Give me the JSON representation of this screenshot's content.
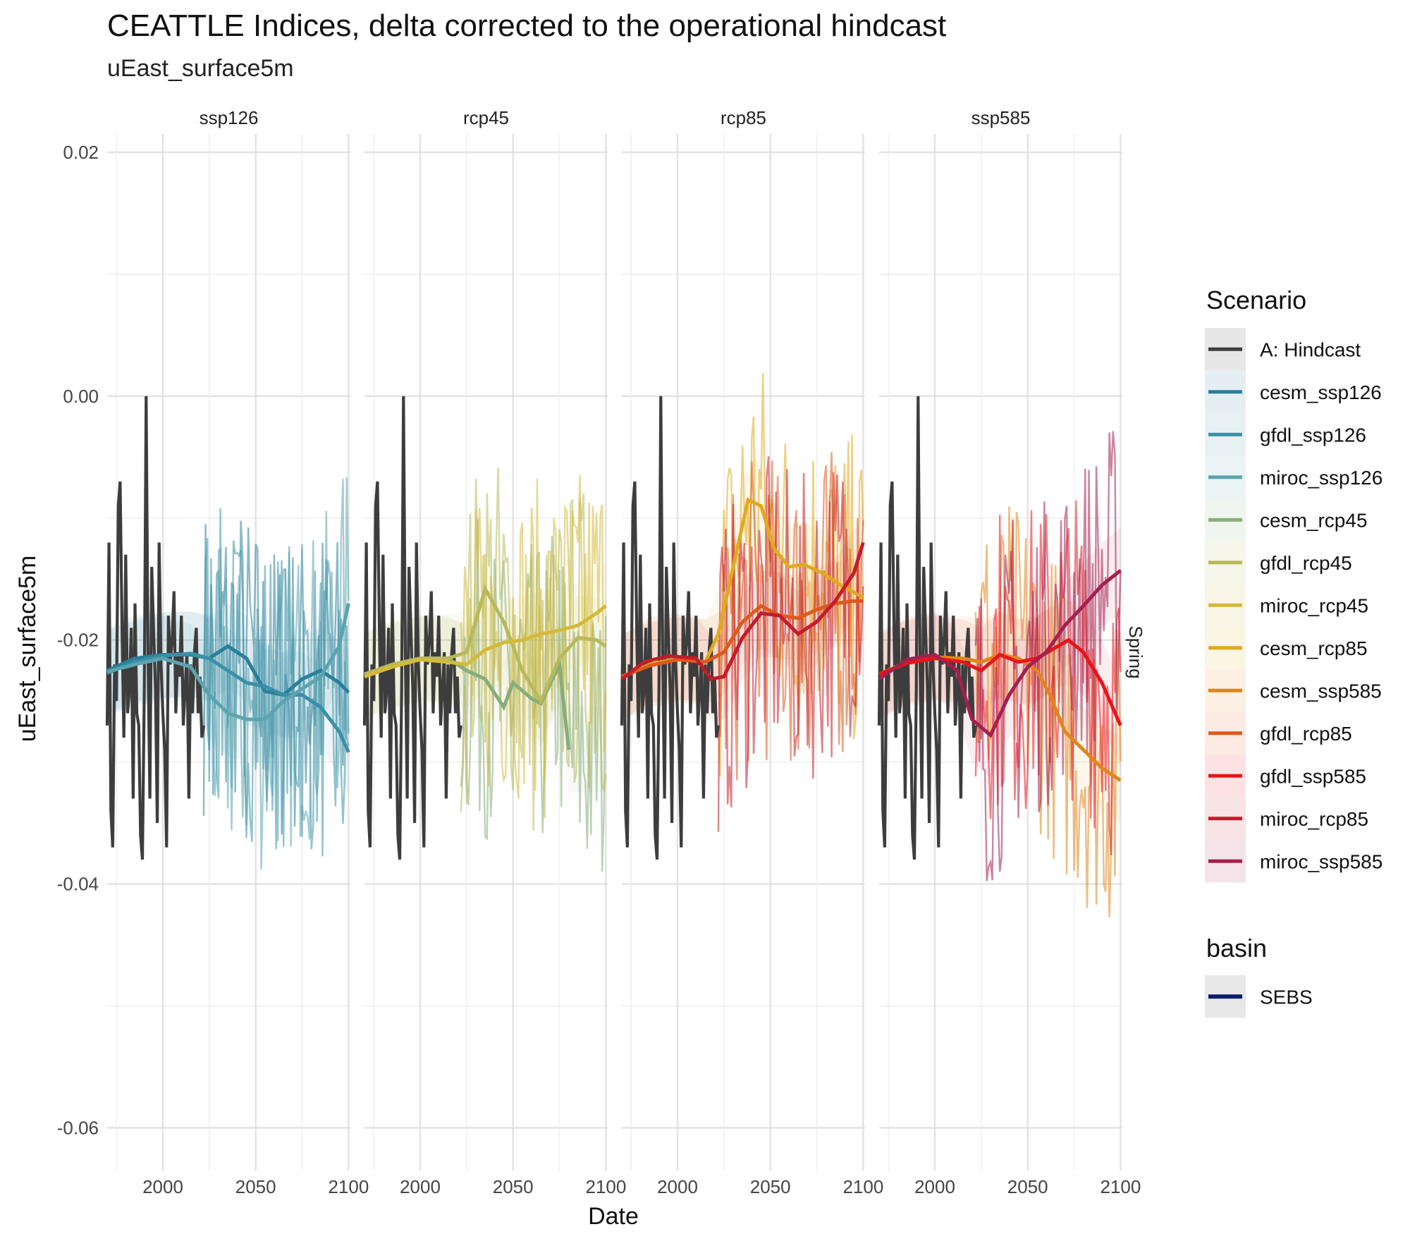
{
  "chart_data": {
    "type": "line",
    "title": "CEATTLE Indices, delta corrected to the operational hindcast",
    "subtitle": "uEast_surface5m",
    "xlabel": "Date",
    "ylabel": "uEast_surface5m",
    "row_strip": "Spring",
    "xlim": [
      1970,
      2101
    ],
    "ylim": [
      -0.0635,
      0.0215
    ],
    "x_ticks": [
      2000,
      2050,
      2100
    ],
    "x_tick_labels": [
      "2000",
      "2050",
      "2100"
    ],
    "y_ticks": [
      0.02,
      0.0,
      -0.02,
      -0.04,
      -0.06
    ],
    "y_tick_labels": [
      "0.02",
      "0.00",
      "-0.02",
      "-0.04",
      "-0.06"
    ],
    "grid": true,
    "legend_position": "right",
    "legend": {
      "scenario_title": "Scenario",
      "scenarios": [
        {
          "name": "A: Hindcast",
          "color": "#3d3d3d"
        },
        {
          "name": "cesm_ssp126",
          "color": "#2a7f9a"
        },
        {
          "name": "gfdl_ssp126",
          "color": "#3b8fa8"
        },
        {
          "name": "miroc_ssp126",
          "color": "#5ba4ae"
        },
        {
          "name": "cesm_rcp45",
          "color": "#87ad7a"
        },
        {
          "name": "gfdl_rcp45",
          "color": "#b8b95a"
        },
        {
          "name": "miroc_rcp45",
          "color": "#d4b93a"
        },
        {
          "name": "cesm_rcp85",
          "color": "#e1a91e"
        },
        {
          "name": "cesm_ssp585",
          "color": "#e0861a"
        },
        {
          "name": "gfdl_rcp85",
          "color": "#dd5a1c"
        },
        {
          "name": "gfdl_ssp585",
          "color": "#e8141b"
        },
        {
          "name": "miroc_rcp85",
          "color": "#c51b2a"
        },
        {
          "name": "miroc_ssp585",
          "color": "#a3204e"
        }
      ],
      "basin_title": "basin",
      "basins": [
        {
          "name": "SEBS",
          "color": "#0b1e6e"
        }
      ]
    },
    "hindcast": {
      "x": [
        1970,
        1971,
        1972,
        1973,
        1974,
        1975,
        1976,
        1977,
        1978,
        1979,
        1980,
        1981,
        1982,
        1983,
        1984,
        1985,
        1986,
        1987,
        1988,
        1989,
        1990,
        1991,
        1992,
        1993,
        1994,
        1995,
        1996,
        1997,
        1998,
        1999,
        2000,
        2001,
        2002,
        2003,
        2004,
        2005,
        2006,
        2007,
        2008,
        2009,
        2010,
        2011,
        2012,
        2013,
        2014,
        2015,
        2016,
        2017,
        2018,
        2019,
        2020,
        2021,
        2022
      ],
      "y": [
        -0.027,
        -0.012,
        -0.034,
        -0.037,
        -0.022,
        -0.025,
        -0.009,
        -0.007,
        -0.019,
        -0.028,
        -0.013,
        -0.026,
        -0.024,
        -0.019,
        -0.033,
        -0.017,
        -0.026,
        -0.027,
        -0.036,
        -0.038,
        -0.024,
        0.0,
        -0.021,
        -0.033,
        -0.014,
        -0.019,
        -0.024,
        -0.035,
        -0.012,
        -0.022,
        -0.026,
        -0.029,
        -0.037,
        -0.018,
        -0.022,
        -0.02,
        -0.016,
        -0.026,
        -0.021,
        -0.023,
        -0.018,
        -0.027,
        -0.024,
        -0.021,
        -0.033,
        -0.022,
        -0.026,
        -0.021,
        -0.019,
        -0.026,
        -0.023,
        -0.028,
        -0.027
      ]
    },
    "panels": [
      {
        "name": "ssp126",
        "series": [
          {
            "name": "cesm_ssp126",
            "smooth": [
              [
                1970,
                -0.0225
              ],
              [
                1985,
                -0.0215
              ],
              [
                2000,
                -0.0212
              ],
              [
                2015,
                -0.0212
              ],
              [
                2025,
                -0.0215
              ],
              [
                2035,
                -0.0205
              ],
              [
                2045,
                -0.0215
              ],
              [
                2055,
                -0.0242
              ],
              [
                2065,
                -0.0245
              ],
              [
                2075,
                -0.0232
              ],
              [
                2085,
                -0.0225
              ],
              [
                2095,
                -0.0235
              ],
              [
                2100,
                -0.0243
              ]
            ]
          },
          {
            "name": "gfdl_ssp126",
            "smooth": [
              [
                1970,
                -0.0227
              ],
              [
                1985,
                -0.0218
              ],
              [
                2000,
                -0.0213
              ],
              [
                2015,
                -0.0211
              ],
              [
                2025,
                -0.0215
              ],
              [
                2035,
                -0.0225
              ],
              [
                2045,
                -0.0235
              ],
              [
                2055,
                -0.0238
              ],
              [
                2065,
                -0.0245
              ],
              [
                2075,
                -0.0245
              ],
              [
                2085,
                -0.0255
              ],
              [
                2095,
                -0.0275
              ],
              [
                2100,
                -0.0292
              ]
            ]
          },
          {
            "name": "miroc_ssp126",
            "smooth": [
              [
                1970,
                -0.0226
              ],
              [
                1985,
                -0.022
              ],
              [
                2000,
                -0.0215
              ],
              [
                2015,
                -0.0222
              ],
              [
                2025,
                -0.0245
              ],
              [
                2035,
                -0.026
              ],
              [
                2045,
                -0.0265
              ],
              [
                2055,
                -0.0265
              ],
              [
                2065,
                -0.025
              ],
              [
                2075,
                -0.024
              ],
              [
                2085,
                -0.023
              ],
              [
                2095,
                -0.0205
              ],
              [
                2100,
                -0.017
              ]
            ]
          }
        ]
      },
      {
        "name": "rcp45",
        "series": [
          {
            "name": "cesm_rcp45",
            "smooth": [
              [
                1970,
                -0.0228
              ],
              [
                1985,
                -0.022
              ],
              [
                2000,
                -0.0215
              ],
              [
                2015,
                -0.0215
              ],
              [
                2025,
                -0.0225
              ],
              [
                2035,
                -0.0232
              ],
              [
                2045,
                -0.0255
              ],
              [
                2050,
                -0.0235
              ],
              [
                2060,
                -0.0248
              ],
              [
                2065,
                -0.0252
              ],
              [
                2075,
                -0.022
              ],
              [
                2080,
                -0.029
              ]
            ]
          },
          {
            "name": "gfdl_rcp45",
            "smooth": [
              [
                1970,
                -0.0228
              ],
              [
                1985,
                -0.022
              ],
              [
                2000,
                -0.0215
              ],
              [
                2015,
                -0.0215
              ],
              [
                2025,
                -0.021
              ],
              [
                2035,
                -0.0158
              ],
              [
                2045,
                -0.0185
              ],
              [
                2055,
                -0.0225
              ],
              [
                2065,
                -0.025
              ],
              [
                2075,
                -0.0215
              ],
              [
                2085,
                -0.0198
              ],
              [
                2095,
                -0.02
              ],
              [
                2100,
                -0.0205
              ]
            ]
          },
          {
            "name": "miroc_rcp45",
            "smooth": [
              [
                1970,
                -0.023
              ],
              [
                1985,
                -0.0222
              ],
              [
                2000,
                -0.0216
              ],
              [
                2015,
                -0.0218
              ],
              [
                2025,
                -0.022
              ],
              [
                2035,
                -0.0208
              ],
              [
                2045,
                -0.0202
              ],
              [
                2055,
                -0.02
              ],
              [
                2065,
                -0.0195
              ],
              [
                2075,
                -0.0192
              ],
              [
                2085,
                -0.0188
              ],
              [
                2095,
                -0.0178
              ],
              [
                2100,
                -0.0172
              ]
            ]
          }
        ]
      },
      {
        "name": "rcp85",
        "series": [
          {
            "name": "cesm_rcp85",
            "smooth": [
              [
                1970,
                -0.023
              ],
              [
                1985,
                -0.022
              ],
              [
                2000,
                -0.0215
              ],
              [
                2015,
                -0.0218
              ],
              [
                2022,
                -0.0195
              ],
              [
                2030,
                -0.014
              ],
              [
                2038,
                -0.0085
              ],
              [
                2045,
                -0.009
              ],
              [
                2052,
                -0.0125
              ],
              [
                2060,
                -0.014
              ],
              [
                2068,
                -0.0138
              ],
              [
                2078,
                -0.0145
              ],
              [
                2088,
                -0.0155
              ],
              [
                2100,
                -0.0165
              ]
            ]
          },
          {
            "name": "gfdl_rcp85",
            "smooth": [
              [
                1970,
                -0.023
              ],
              [
                1985,
                -0.0221
              ],
              [
                2000,
                -0.0216
              ],
              [
                2015,
                -0.0218
              ],
              [
                2025,
                -0.021
              ],
              [
                2035,
                -0.0185
              ],
              [
                2045,
                -0.0172
              ],
              [
                2055,
                -0.018
              ],
              [
                2065,
                -0.0182
              ],
              [
                2075,
                -0.0175
              ],
              [
                2085,
                -0.017
              ],
              [
                2095,
                -0.0168
              ],
              [
                2100,
                -0.0168
              ]
            ]
          },
          {
            "name": "miroc_rcp85",
            "smooth": [
              [
                1970,
                -0.0232
              ],
              [
                1982,
                -0.0218
              ],
              [
                1995,
                -0.0213
              ],
              [
                2010,
                -0.0215
              ],
              [
                2018,
                -0.0232
              ],
              [
                2025,
                -0.023
              ],
              [
                2035,
                -0.0198
              ],
              [
                2045,
                -0.0178
              ],
              [
                2055,
                -0.018
              ],
              [
                2065,
                -0.0195
              ],
              [
                2075,
                -0.0185
              ],
              [
                2085,
                -0.0168
              ],
              [
                2095,
                -0.0145
              ],
              [
                2100,
                -0.012
              ]
            ]
          }
        ]
      },
      {
        "name": "ssp585",
        "series": [
          {
            "name": "cesm_ssp585",
            "smooth": [
              [
                1970,
                -0.0228
              ],
              [
                1985,
                -0.0218
              ],
              [
                2000,
                -0.0214
              ],
              [
                2015,
                -0.0215
              ],
              [
                2025,
                -0.0218
              ],
              [
                2035,
                -0.0212
              ],
              [
                2045,
                -0.0215
              ],
              [
                2055,
                -0.0225
              ],
              [
                2062,
                -0.0245
              ],
              [
                2070,
                -0.0275
              ],
              [
                2080,
                -0.029
              ],
              [
                2090,
                -0.0305
              ],
              [
                2100,
                -0.0315
              ]
            ]
          },
          {
            "name": "gfdl_ssp585",
            "smooth": [
              [
                1970,
                -0.0228
              ],
              [
                1985,
                -0.0219
              ],
              [
                2000,
                -0.0215
              ],
              [
                2015,
                -0.0218
              ],
              [
                2025,
                -0.0225
              ],
              [
                2035,
                -0.0212
              ],
              [
                2045,
                -0.0218
              ],
              [
                2055,
                -0.0215
              ],
              [
                2063,
                -0.0208
              ],
              [
                2072,
                -0.02
              ],
              [
                2080,
                -0.021
              ],
              [
                2090,
                -0.0235
              ],
              [
                2100,
                -0.027
              ]
            ]
          },
          {
            "name": "miroc_ssp585",
            "smooth": [
              [
                1970,
                -0.0232
              ],
              [
                1985,
                -0.0216
              ],
              [
                2000,
                -0.0212
              ],
              [
                2012,
                -0.0225
              ],
              [
                2020,
                -0.0265
              ],
              [
                2030,
                -0.0278
              ],
              [
                2040,
                -0.0245
              ],
              [
                2050,
                -0.0222
              ],
              [
                2060,
                -0.021
              ],
              [
                2070,
                -0.0188
              ],
              [
                2080,
                -0.0172
              ],
              [
                2090,
                -0.0155
              ],
              [
                2100,
                -0.0143
              ]
            ]
          }
        ]
      }
    ]
  }
}
